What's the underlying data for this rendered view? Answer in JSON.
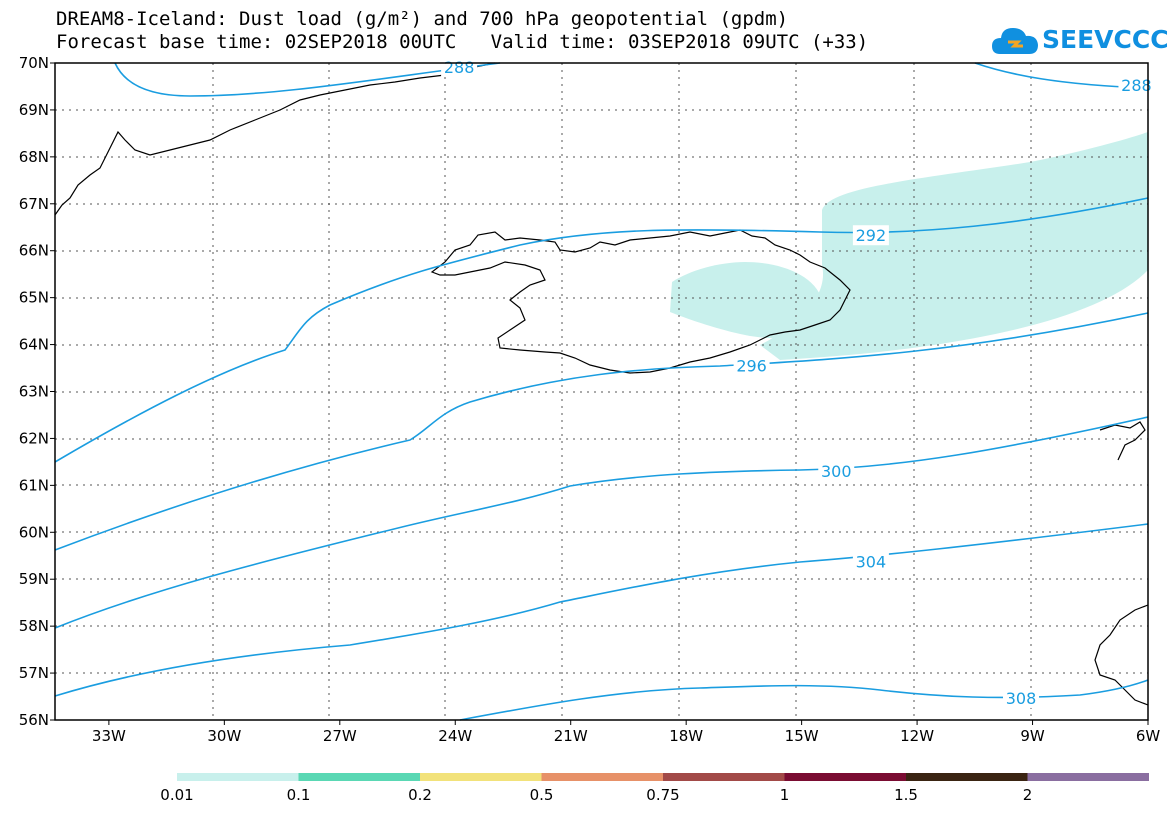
{
  "title_line1": "DREAM8-Iceland: Dust load (g/m²) and 700 hPa geopotential (gpdm)",
  "title_line2": "Forecast base time: 02SEP2018 00UTC   Valid time: 03SEP2018 09UTC (+33)",
  "logo_text": "SEEVCCC",
  "map": {
    "lat_labels": [
      "70N",
      "69N",
      "68N",
      "67N",
      "66N",
      "65N",
      "64N",
      "63N",
      "62N",
      "61N",
      "60N",
      "59N",
      "58N",
      "57N",
      "56N"
    ],
    "lon_labels": [
      "33W",
      "30W",
      "27W",
      "24W",
      "21W",
      "18W",
      "15W",
      "12W",
      "9W",
      "6W"
    ],
    "contour_labels": [
      {
        "value": "288",
        "lon": -23.9,
        "lat": 69.92
      },
      {
        "value": "288",
        "lon": -6.3,
        "lat": 69.53
      },
      {
        "value": "292",
        "lon": -13.2,
        "lat": 66.33
      },
      {
        "value": "296",
        "lon": -16.3,
        "lat": 63.55
      },
      {
        "value": "300",
        "lon": -14.1,
        "lat": 61.31
      },
      {
        "value": "304",
        "lon": -13.2,
        "lat": 59.38
      },
      {
        "value": "308",
        "lon": -9.3,
        "lat": 56.47
      }
    ]
  },
  "colorbar": {
    "labels": [
      "0.01",
      "0.1",
      "0.2",
      "0.5",
      "0.75",
      "1",
      "1.5",
      "2"
    ],
    "colors": [
      "#c8f0ec",
      "#5ad8b4",
      "#f2e27a",
      "#e79168",
      "#a24a48",
      "#7a0c32",
      "#3a2412",
      "#8a6ea0"
    ]
  },
  "colors": {
    "contour": "#1a9de0",
    "dust": "#c8f0ec",
    "coast": "#000000"
  }
}
